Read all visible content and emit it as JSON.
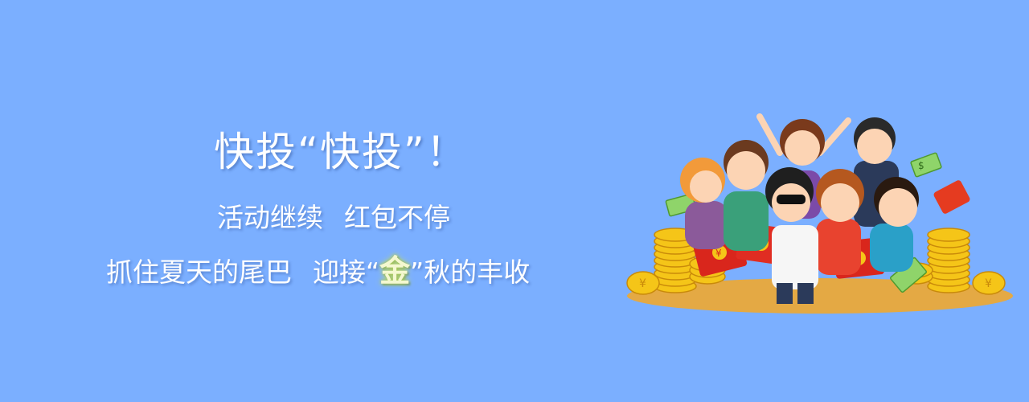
{
  "banner": {
    "title": "快投“快投”！",
    "subtitle_part1": "活动继续",
    "subtitle_part2": "红包不停",
    "slogan_part1": "抓住夏天的尾巴",
    "slogan_part2": "迎接“",
    "slogan_highlight": "金",
    "slogan_part3": "”秋的丰收"
  },
  "illustration": {
    "coin_symbol": "¥",
    "envelope_symbol": "¥",
    "cash_symbol": "$"
  },
  "colors": {
    "background": "#7bafff",
    "text": "#ffffff",
    "highlight": "#f4f8d0",
    "coin": "#f5c518",
    "envelope": "#d9261c"
  }
}
